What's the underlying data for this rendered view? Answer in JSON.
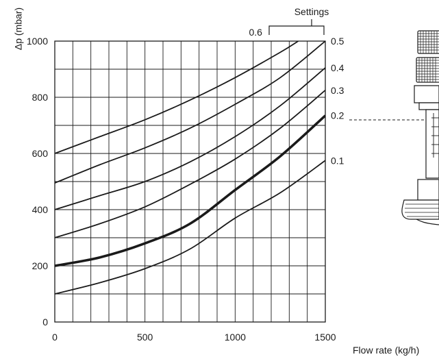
{
  "chart_data": {
    "type": "line",
    "title": "",
    "xlabel": "Flow rate (kg/h)",
    "ylabel": "Δp (mbar)",
    "xlim": [
      0,
      1500
    ],
    "ylim": [
      0,
      1000
    ],
    "x_ticks": [
      "0",
      "500",
      "1000",
      "1500"
    ],
    "y_ticks": [
      "0",
      "200",
      "400",
      "600",
      "800",
      "1000"
    ],
    "grid": true,
    "settings_label": "Settings",
    "legend_placement": "right-of-plot",
    "series": [
      {
        "name": "0.1",
        "bold": false,
        "x": [
          0,
          250,
          500,
          750,
          1000,
          1250,
          1500
        ],
        "y": [
          100,
          140,
          190,
          260,
          370,
          460,
          575
        ]
      },
      {
        "name": "0.2",
        "bold": true,
        "x": [
          0,
          250,
          500,
          750,
          1000,
          1250,
          1500
        ],
        "y": [
          200,
          230,
          280,
          350,
          470,
          590,
          735
        ]
      },
      {
        "name": "0.3",
        "bold": false,
        "x": [
          0,
          250,
          500,
          750,
          1000,
          1250,
          1500
        ],
        "y": [
          300,
          350,
          410,
          490,
          580,
          690,
          825
        ]
      },
      {
        "name": "0.4",
        "bold": false,
        "x": [
          0,
          250,
          500,
          750,
          1000,
          1250,
          1500
        ],
        "y": [
          400,
          450,
          500,
          570,
          660,
          770,
          905
        ]
      },
      {
        "name": "0.5",
        "bold": false,
        "x": [
          0,
          250,
          500,
          750,
          1000,
          1250,
          1500
        ],
        "y": [
          495,
          560,
          620,
          690,
          775,
          870,
          1000
        ]
      },
      {
        "name": "0.6",
        "bold": false,
        "x": [
          0,
          250,
          500,
          750,
          1000,
          1250,
          1350
        ],
        "y": [
          600,
          660,
          720,
          790,
          870,
          960,
          1000
        ]
      }
    ]
  }
}
